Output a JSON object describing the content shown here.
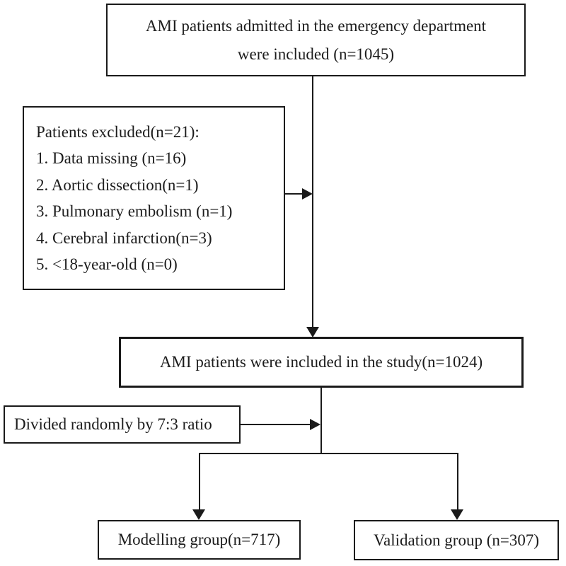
{
  "colors": {
    "line": "#1a1a1a",
    "text": "#1c1c1c",
    "background": "#ffffff"
  },
  "flowchart": {
    "top_box": {
      "line1": "AMI patients admitted in the emergency department",
      "line2": "were included (n=1045)"
    },
    "excluded_box": {
      "title": "Patients excluded(n=21):",
      "items": [
        "1. Data missing (n=16)",
        "2. Aortic dissection(n=1)",
        "3. Pulmonary embolism (n=1)",
        "4. Cerebral infarction(n=3)",
        "5. <18-year-old (n=0)"
      ]
    },
    "included_box": {
      "text": "AMI patients were included in the study(n=1024)"
    },
    "divided_box": {
      "text": "Divided randomly by 7:3 ratio"
    },
    "modelling_box": {
      "text": "Modelling group(n=717)"
    },
    "validation_box": {
      "text": "Validation group (n=307)"
    }
  }
}
